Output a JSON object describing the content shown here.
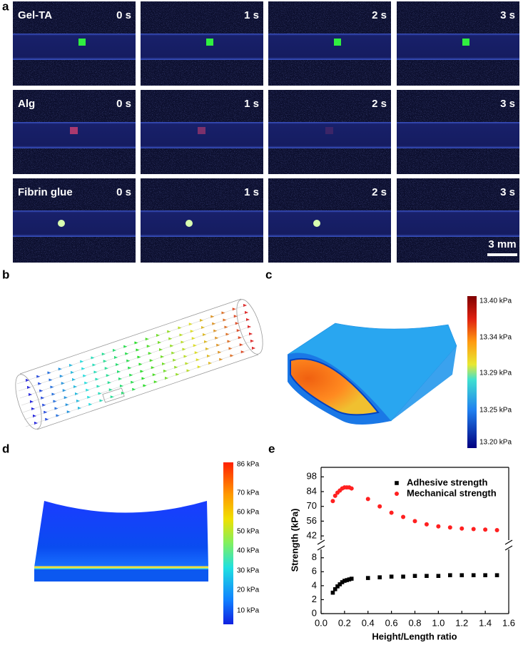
{
  "panel_labels": [
    "a",
    "b",
    "c",
    "d",
    "e"
  ],
  "panel_a": {
    "rows": [
      {
        "label": "Gel-TA",
        "times": [
          "0 s",
          "1 s",
          "2 s",
          "3 s"
        ]
      },
      {
        "label": "Alg",
        "times": [
          "0 s",
          "1 s",
          "2 s",
          "3 s"
        ]
      },
      {
        "label": "Fibrin glue",
        "times": [
          "0 s",
          "1 s",
          "2 s",
          "3 s"
        ]
      }
    ],
    "scale_bar": "3 mm"
  },
  "panel_c": {
    "colorbar": [
      "13.40 kPa",
      "13.34 kPa",
      "13.29 kPa",
      "13.25 kPa",
      "13.20 kPa"
    ]
  },
  "panel_d": {
    "colorbar": [
      "86 kPa",
      "70 kPa",
      "60 kPa",
      "50 kPa",
      "40 kPa",
      "30 kPa",
      "20 kPa",
      "10 kPa"
    ]
  },
  "chart_data": {
    "type": "scatter",
    "xlabel": "Height/Length ratio",
    "ylabel": "Strength (kPa)",
    "x": [
      0.1,
      0.12,
      0.14,
      0.16,
      0.18,
      0.2,
      0.22,
      0.24,
      0.26,
      0.4,
      0.5,
      0.6,
      0.7,
      0.8,
      0.9,
      1.0,
      1.1,
      1.2,
      1.3,
      1.4,
      1.5
    ],
    "series": [
      {
        "name": "Adhesive strength",
        "color": "#000000",
        "marker": "square",
        "values": [
          3.0,
          3.5,
          3.9,
          4.2,
          4.5,
          4.7,
          4.8,
          4.9,
          5.0,
          5.1,
          5.2,
          5.3,
          5.3,
          5.4,
          5.4,
          5.4,
          5.5,
          5.5,
          5.5,
          5.5,
          5.5
        ]
      },
      {
        "name": "Mechanical strength",
        "color": "#ff2020",
        "marker": "circle",
        "axis": "y2",
        "values": [
          75,
          80,
          83,
          85,
          87,
          88,
          88,
          88,
          87,
          77,
          70,
          64,
          60,
          56,
          53,
          51,
          50,
          49,
          48.5,
          48,
          47.5
        ]
      }
    ],
    "xlim": [
      0,
      1.6
    ],
    "xticks": [
      {
        "value": 0,
        "label": "0.0"
      },
      0.2,
      0.4,
      0.6,
      0.8,
      {
        "value": 1,
        "label": "1.0"
      },
      1.2,
      1.4,
      1.6
    ],
    "ylim": [
      0,
      9.2
    ],
    "yticks": [
      0,
      2,
      4,
      6,
      8
    ],
    "y2lim": [
      38,
      107
    ],
    "y2ticks": [
      42,
      56,
      70,
      84,
      98
    ],
    "legend": "upper-right"
  }
}
